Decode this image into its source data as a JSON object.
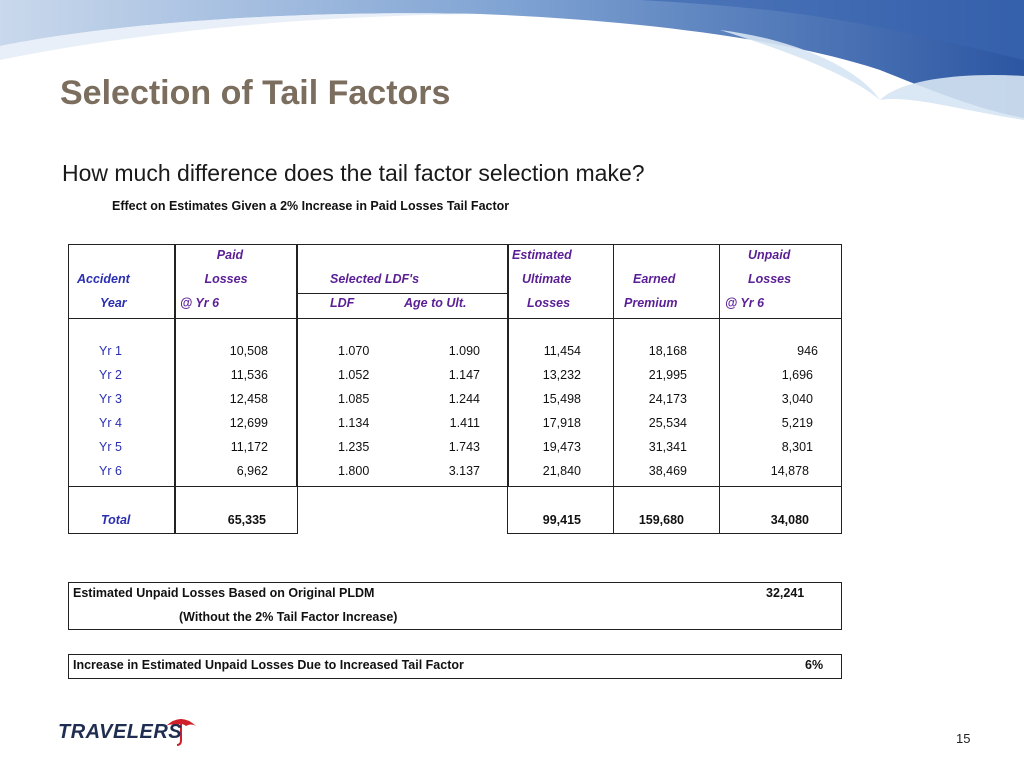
{
  "slide": {
    "title": "Selection of Tail Factors",
    "subtitle": "How much difference does the tail factor selection make?",
    "caption": "Effect on Estimates Given a 2% Increase in Paid Losses Tail Factor",
    "page_number": "15",
    "logo_text": "TRAVELERS"
  },
  "table": {
    "headers": {
      "accident_year_1": "Accident",
      "accident_year_2": "Year",
      "paid_1": "Paid",
      "paid_2": "Losses",
      "paid_3": "@ Yr 6",
      "ldf_1": "Selected LDF's",
      "ldf_2": "LDF",
      "ldf_3": "Age to Ult.",
      "est_1": "Estimated",
      "est_2": "Ultimate",
      "est_3": "Losses",
      "earned_1": "Earned",
      "earned_2": "Premium",
      "unpaid_1": "Unpaid",
      "unpaid_2": "Losses",
      "unpaid_3": "@ Yr 6"
    },
    "rows": [
      {
        "year": "Yr 1",
        "paid": "10,508",
        "ldf": "1.070",
        "age": "1.090",
        "ult": "11,454",
        "prem": "18,168",
        "unpaid": "946"
      },
      {
        "year": "Yr 2",
        "paid": "11,536",
        "ldf": "1.052",
        "age": "1.147",
        "ult": "13,232",
        "prem": "21,995",
        "unpaid": "1,696"
      },
      {
        "year": "Yr 3",
        "paid": "12,458",
        "ldf": "1.085",
        "age": "1.244",
        "ult": "15,498",
        "prem": "24,173",
        "unpaid": "3,040"
      },
      {
        "year": "Yr 4",
        "paid": "12,699",
        "ldf": "1.134",
        "age": "1.411",
        "ult": "17,918",
        "prem": "25,534",
        "unpaid": "5,219"
      },
      {
        "year": "Yr 5",
        "paid": "11,172",
        "ldf": "1.235",
        "age": "1.743",
        "ult": "19,473",
        "prem": "31,341",
        "unpaid": "8,301"
      },
      {
        "year": "Yr 6",
        "paid": "6,962",
        "ldf": "1.800",
        "age": "3.137",
        "ult": "21,840",
        "prem": "38,469",
        "unpaid": "14,878"
      }
    ],
    "total": {
      "label": "Total",
      "paid": "65,335",
      "ult": "99,415",
      "prem": "159,680",
      "unpaid": "34,080"
    }
  },
  "summary": {
    "original_label": "Estimated Unpaid Losses Based on Original PLDM",
    "original_value": "32,241",
    "original_note": "(Without the 2% Tail Factor Increase)",
    "increase_label": "Increase in Estimated Unpaid Losses Due to Increased Tail Factor",
    "increase_value": "6%"
  },
  "colors": {
    "title": "#7b6e5e",
    "header_purple": "#5a1f94",
    "year_blue": "#2a2fb0",
    "banner_blue": "#2f5ea8"
  }
}
